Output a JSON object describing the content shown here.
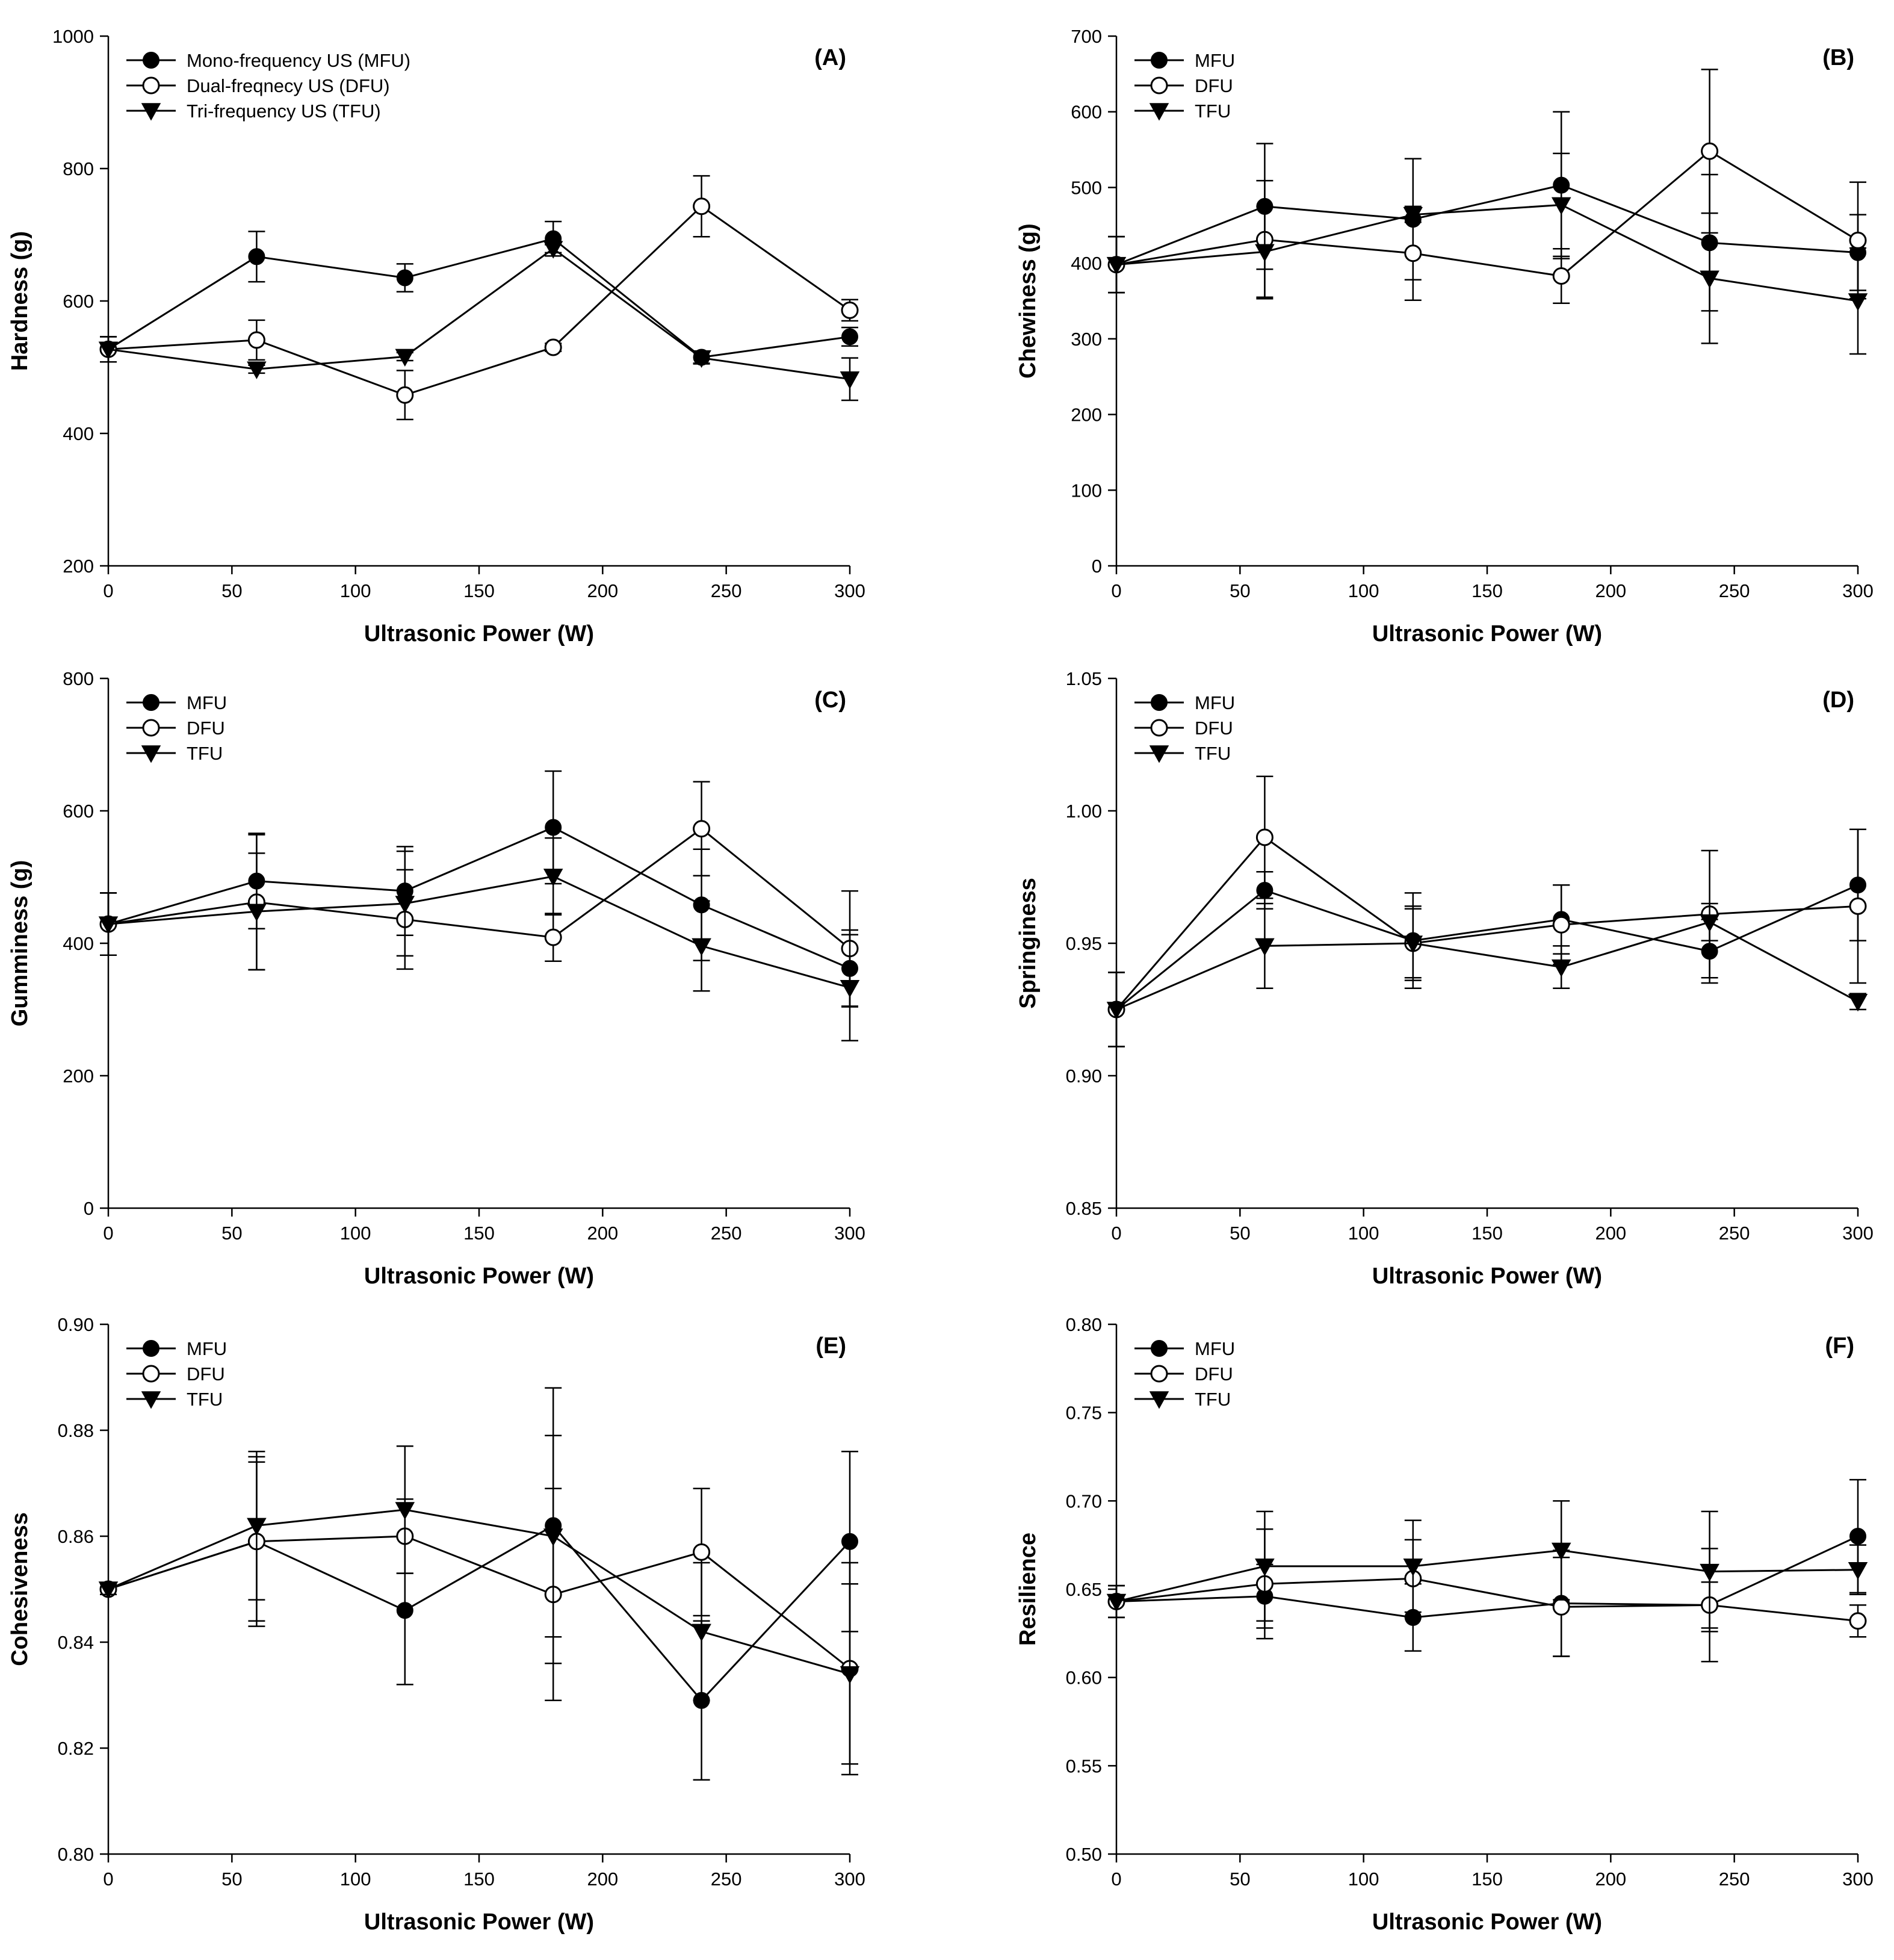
{
  "chart_data": [
    {
      "type": "line",
      "panel_label": "(A)",
      "xlabel": "Ultrasonic Power (W)",
      "ylabel": "Hardness (g)",
      "xlim": [
        0,
        300
      ],
      "ylim": [
        200,
        1000
      ],
      "xticks": [
        0,
        50,
        100,
        150,
        200,
        250,
        300
      ],
      "yticks": [
        200,
        400,
        600,
        800,
        1000
      ],
      "ytick_labels": [
        "200",
        "400",
        "600",
        "800",
        "1000"
      ],
      "x": [
        0,
        60,
        120,
        180,
        240,
        300
      ],
      "legend": "top-left",
      "series": [
        {
          "name": "Mono-frequency US (MFU)",
          "marker": "filled-circle",
          "values": [
            527,
            667,
            635,
            694,
            515,
            546
          ],
          "errors": [
            19,
            38,
            21,
            26,
            9,
            14
          ]
        },
        {
          "name": "Dual-freqnecy US (DFU)",
          "marker": "open-circle",
          "values": [
            527,
            541,
            458,
            530,
            743,
            586
          ],
          "errors": [
            19,
            30,
            37,
            6,
            46,
            16
          ]
        },
        {
          "name": "Tri-frequency US (TFU)",
          "marker": "filled-triangle-down",
          "values": [
            527,
            497,
            516,
            679,
            514,
            482
          ],
          "errors": [
            19,
            6,
            6,
            6,
            9,
            32
          ]
        }
      ]
    },
    {
      "type": "line",
      "panel_label": "(B)",
      "xlabel": "Ultrasonic Power (W)",
      "ylabel": "Chewiness (g)",
      "xlim": [
        0,
        300
      ],
      "ylim": [
        0,
        700
      ],
      "xticks": [
        0,
        50,
        100,
        150,
        200,
        250,
        300
      ],
      "yticks": [
        0,
        100,
        200,
        300,
        400,
        500,
        600,
        700
      ],
      "ytick_labels": [
        "0",
        "100",
        "200",
        "300",
        "400",
        "500",
        "600",
        "700"
      ],
      "x": [
        0,
        60,
        120,
        180,
        240,
        300
      ],
      "legend": "top-left",
      "series": [
        {
          "name": "MFU",
          "marker": "filled-circle",
          "values": [
            398,
            475,
            458,
            503,
            427,
            414
          ],
          "errors": [
            37,
            83,
            80,
            97,
            90,
            50
          ]
        },
        {
          "name": "DFU",
          "marker": "open-circle",
          "values": [
            398,
            431,
            413,
            383,
            548,
            430
          ],
          "errors": [
            37,
            78,
            62,
            36,
            108,
            77
          ]
        },
        {
          "name": "TFU",
          "marker": "filled-triangle-down",
          "values": [
            398,
            415,
            464,
            477,
            380,
            350
          ],
          "errors": [
            37,
            60,
            10,
            68,
            86,
            70
          ]
        }
      ]
    },
    {
      "type": "line",
      "panel_label": "(C)",
      "xlabel": "Ultrasonic Power (W)",
      "ylabel": "Gumminess (g)",
      "xlim": [
        0,
        300
      ],
      "ylim": [
        0,
        800
      ],
      "xticks": [
        0,
        50,
        100,
        150,
        200,
        250,
        300
      ],
      "yticks": [
        0,
        200,
        400,
        600,
        800
      ],
      "ytick_labels": [
        "0",
        "200",
        "400",
        "600",
        "800"
      ],
      "x": [
        0,
        60,
        120,
        180,
        240,
        300
      ],
      "legend": "top-left",
      "series": [
        {
          "name": "MFU",
          "marker": "filled-circle",
          "values": [
            429,
            494,
            479,
            575,
            458,
            362
          ],
          "errors": [
            47,
            72,
            67,
            85,
            84,
            58
          ]
        },
        {
          "name": "DFU",
          "marker": "open-circle",
          "values": [
            429,
            462,
            436,
            409,
            573,
            392
          ],
          "errors": [
            47,
            102,
            75,
            36,
            71,
            87
          ]
        },
        {
          "name": "TFU",
          "marker": "filled-triangle-down",
          "values": [
            429,
            448,
            460,
            501,
            396,
            333
          ],
          "errors": [
            47,
            88,
            79,
            58,
            68,
            80
          ]
        }
      ]
    },
    {
      "type": "line",
      "panel_label": "(D)",
      "xlabel": "Ultrasonic Power (W)",
      "ylabel": "Springiness",
      "xlim": [
        0,
        300
      ],
      "ylim": [
        0.85,
        1.05
      ],
      "xticks": [
        0,
        50,
        100,
        150,
        200,
        250,
        300
      ],
      "yticks": [
        0.85,
        0.9,
        0.95,
        1.0,
        1.05
      ],
      "ytick_labels": [
        "0.85",
        "0.90",
        "0.95",
        "1.00",
        "1.05"
      ],
      "x": [
        0,
        60,
        120,
        180,
        240,
        300
      ],
      "legend": "top-left",
      "series": [
        {
          "name": "MFU",
          "marker": "filled-circle",
          "values": [
            0.925,
            0.97,
            0.951,
            0.959,
            0.947,
            0.972
          ],
          "errors": [
            0.014,
            0.007,
            0.018,
            0.013,
            0.012,
            0.021
          ]
        },
        {
          "name": "DFU",
          "marker": "open-circle",
          "values": [
            0.925,
            0.99,
            0.95,
            0.957,
            0.961,
            0.964
          ],
          "errors": [
            0.014,
            0.023,
            0.014,
            0.015,
            0.024,
            0.029
          ]
        },
        {
          "name": "TFU",
          "marker": "filled-triangle-down",
          "values": [
            0.925,
            0.949,
            0.95,
            0.941,
            0.958,
            0.928
          ],
          "errors": [
            0.014,
            0.016,
            0.013,
            0.008,
            0.007,
            0.003
          ]
        }
      ]
    },
    {
      "type": "line",
      "panel_label": "(E)",
      "xlabel": "Ultrasonic Power (W)",
      "ylabel": "Cohesiveness",
      "xlim": [
        0,
        300
      ],
      "ylim": [
        0.8,
        0.9
      ],
      "xticks": [
        0,
        50,
        100,
        150,
        200,
        250,
        300
      ],
      "yticks": [
        0.8,
        0.82,
        0.84,
        0.86,
        0.88,
        0.9
      ],
      "ytick_labels": [
        "0.80",
        "0.82",
        "0.84",
        "0.86",
        "0.88",
        "0.90"
      ],
      "x": [
        0,
        60,
        120,
        180,
        240,
        300
      ],
      "legend": "top-left",
      "series": [
        {
          "name": "MFU",
          "marker": "filled-circle",
          "values": [
            0.85,
            0.859,
            0.846,
            0.862,
            0.829,
            0.859
          ],
          "errors": [
            0.001,
            0.015,
            0.014,
            0.026,
            0.015,
            0.017
          ]
        },
        {
          "name": "DFU",
          "marker": "open-circle",
          "values": [
            0.85,
            0.859,
            0.86,
            0.849,
            0.857,
            0.835
          ],
          "errors": [
            0.001,
            0.016,
            0.007,
            0.02,
            0.012,
            0.02
          ]
        },
        {
          "name": "TFU",
          "marker": "filled-triangle-down",
          "values": [
            0.85,
            0.862,
            0.865,
            0.86,
            0.842,
            0.834
          ],
          "errors": [
            0.001,
            0.014,
            0.012,
            0.019,
            0.013,
            0.017
          ]
        }
      ]
    },
    {
      "type": "line",
      "panel_label": "(F)",
      "xlabel": "Ultrasonic Power (W)",
      "ylabel": "Resilience",
      "xlim": [
        0,
        300
      ],
      "ylim": [
        0.5,
        0.8
      ],
      "xticks": [
        0,
        50,
        100,
        150,
        200,
        250,
        300
      ],
      "yticks": [
        0.5,
        0.55,
        0.6,
        0.65,
        0.7,
        0.75,
        0.8
      ],
      "ytick_labels": [
        "0.50",
        "0.55",
        "0.60",
        "0.65",
        "0.70",
        "0.75",
        "0.80"
      ],
      "x": [
        0,
        60,
        120,
        180,
        240,
        300
      ],
      "legend": "top-left",
      "series": [
        {
          "name": "MFU",
          "marker": "filled-circle",
          "values": [
            0.643,
            0.646,
            0.634,
            0.642,
            0.641,
            0.68
          ],
          "errors": [
            0.009,
            0.018,
            0.019,
            0.03,
            0.013,
            0.032
          ]
        },
        {
          "name": "DFU",
          "marker": "open-circle",
          "values": [
            0.643,
            0.653,
            0.656,
            0.64,
            0.641,
            0.632
          ],
          "errors": [
            0.009,
            0.031,
            0.022,
            0.028,
            0.032,
            0.009
          ]
        },
        {
          "name": "TFU",
          "marker": "filled-triangle-down",
          "values": [
            0.643,
            0.663,
            0.663,
            0.672,
            0.66,
            0.661
          ],
          "errors": [
            0.009,
            0.031,
            0.026,
            0.028,
            0.034,
            0.014
          ]
        }
      ]
    }
  ]
}
